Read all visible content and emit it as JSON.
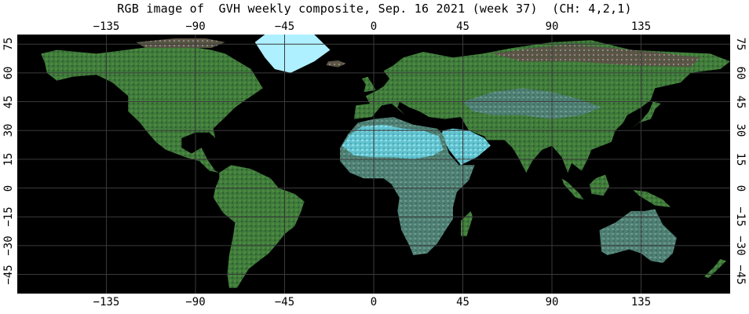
{
  "title": "RGB image of  GVH weekly composite, Sep. 16 2021 (week 37)  (CH: 4,2,1)",
  "map": {
    "lon_ticks": [
      -135,
      -90,
      -45,
      0,
      45,
      90,
      135
    ],
    "lat_ticks": [
      75,
      60,
      45,
      30,
      15,
      0,
      -15,
      -30,
      -45
    ],
    "lon_range": [
      -180,
      180
    ],
    "lat_range": [
      80,
      -55
    ],
    "grid_color": "#3a3a3a",
    "colors": {
      "ocean": "#000000",
      "vegetation": "#3f7a3a",
      "dry_land": "#5a8a86",
      "desert": "#6fd0dc",
      "ice": "#aef0ff",
      "tundra": "#6a5a4a"
    }
  }
}
